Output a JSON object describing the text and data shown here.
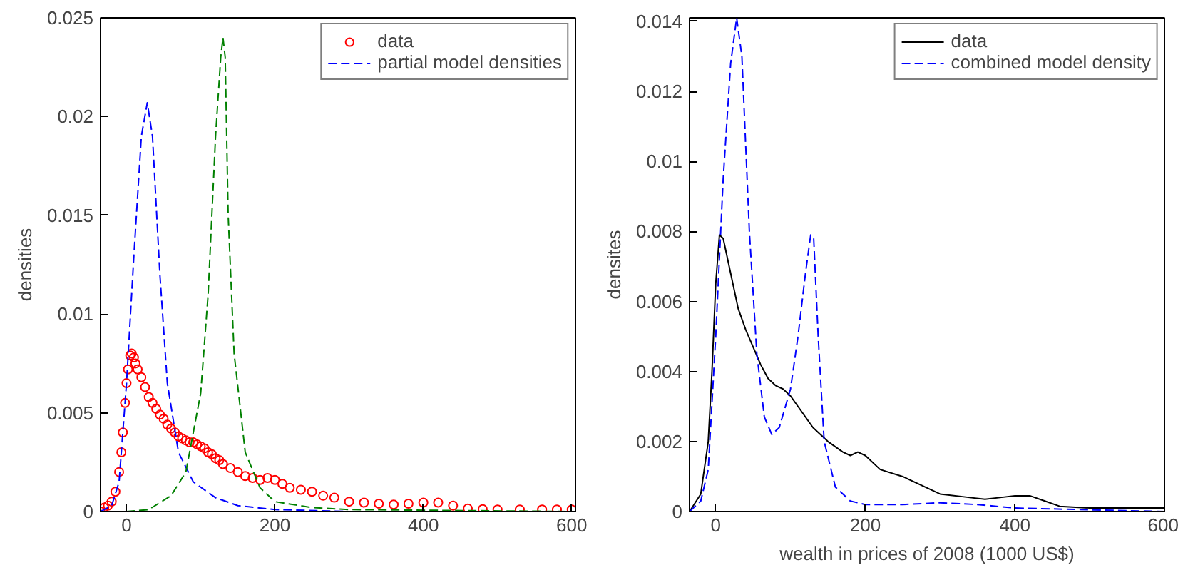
{
  "chart_data": [
    {
      "type": "line",
      "ylabel": "densities",
      "xlim": [
        -35,
        605
      ],
      "ylim": [
        0,
        0.025
      ],
      "xticks": [
        0,
        200,
        400,
        600
      ],
      "yticks": [
        0,
        0.005,
        0.01,
        0.015,
        0.02,
        0.025
      ],
      "grid": false,
      "legend": "top right",
      "series": [
        {
          "name": "data",
          "type": "scatter",
          "marker": "circle",
          "color": "#ff0000",
          "x": [
            -35,
            -30,
            -25,
            -20,
            -15,
            -10,
            -7,
            -5,
            -2,
            0,
            2,
            5,
            7,
            10,
            12,
            15,
            20,
            25,
            30,
            35,
            40,
            45,
            50,
            55,
            60,
            65,
            70,
            75,
            80,
            85,
            90,
            95,
            100,
            105,
            110,
            115,
            120,
            125,
            130,
            140,
            150,
            160,
            170,
            180,
            190,
            200,
            210,
            220,
            235,
            250,
            265,
            280,
            300,
            320,
            340,
            360,
            380,
            400,
            420,
            440,
            460,
            480,
            500,
            530,
            560,
            580,
            600
          ],
          "values": [
            0,
            0.0002,
            0.0003,
            0.0005,
            0.001,
            0.002,
            0.003,
            0.004,
            0.0055,
            0.0065,
            0.0072,
            0.0079,
            0.008,
            0.0078,
            0.0075,
            0.0072,
            0.0068,
            0.0063,
            0.0058,
            0.0055,
            0.0052,
            0.0049,
            0.0047,
            0.0044,
            0.0042,
            0.004,
            0.0038,
            0.0037,
            0.0036,
            0.0035,
            0.0035,
            0.0034,
            0.0033,
            0.0032,
            0.003,
            0.0029,
            0.0027,
            0.0026,
            0.0024,
            0.0022,
            0.002,
            0.0018,
            0.0017,
            0.0016,
            0.0017,
            0.0016,
            0.0014,
            0.0012,
            0.0011,
            0.001,
            0.0008,
            0.0007,
            0.0005,
            0.00045,
            0.0004,
            0.00035,
            0.0004,
            0.00045,
            0.00045,
            0.0003,
            0.00015,
            0.00012,
            0.0001,
            0.0001,
            0.0001,
            0.0001,
            0.0001
          ]
        },
        {
          "name": "partial model densities",
          "line_style": "dashed",
          "marker": "none",
          "color": "#0000ff",
          "x": [
            -35,
            -20,
            -10,
            0,
            10,
            20,
            28,
            35,
            45,
            55,
            70,
            90,
            120,
            150,
            200,
            300,
            600
          ],
          "values": [
            0,
            0.0003,
            0.0015,
            0.0065,
            0.013,
            0.019,
            0.0207,
            0.019,
            0.012,
            0.0065,
            0.003,
            0.0015,
            0.0007,
            0.0003,
            0.0001,
            0,
            0
          ]
        },
        {
          "line_style": "dashed",
          "marker": "none",
          "color": "#008000",
          "x": [
            -35,
            0,
            30,
            60,
            80,
            100,
            110,
            120,
            127,
            130,
            133,
            137,
            145,
            160,
            180,
            200,
            250,
            300,
            600
          ],
          "values": [
            0,
            0,
            0.0001,
            0.0008,
            0.002,
            0.006,
            0.011,
            0.019,
            0.023,
            0.024,
            0.023,
            0.015,
            0.008,
            0.003,
            0.0012,
            0.0005,
            0.0002,
            0.0001,
            0
          ]
        }
      ]
    },
    {
      "type": "line",
      "xlabel": "wealth in prices of 2008 (1000 US$)",
      "ylabel": "densites",
      "xlim": [
        -35,
        600
      ],
      "ylim": [
        0,
        0.0141
      ],
      "xticks": [
        0,
        200,
        400,
        600
      ],
      "yticks": [
        0,
        0.002,
        0.004,
        0.006,
        0.008,
        0.01,
        0.012,
        0.014
      ],
      "grid": false,
      "legend": "top right",
      "series": [
        {
          "name": "data",
          "line_style": "solid",
          "marker": "none",
          "color": "#000000",
          "x": [
            -35,
            -20,
            -10,
            -5,
            0,
            5,
            10,
            20,
            30,
            40,
            50,
            60,
            70,
            80,
            90,
            100,
            110,
            120,
            130,
            150,
            170,
            180,
            190,
            200,
            220,
            250,
            280,
            300,
            340,
            360,
            380,
            400,
            420,
            440,
            460,
            500,
            530,
            560,
            580,
            600
          ],
          "values": [
            0,
            0.0005,
            0.002,
            0.004,
            0.0065,
            0.0079,
            0.0078,
            0.0068,
            0.0058,
            0.0052,
            0.0047,
            0.0042,
            0.0038,
            0.0036,
            0.0035,
            0.0033,
            0.003,
            0.0027,
            0.0024,
            0.002,
            0.0017,
            0.0016,
            0.0017,
            0.0016,
            0.0012,
            0.001,
            0.0007,
            0.0005,
            0.0004,
            0.00035,
            0.0004,
            0.00045,
            0.00045,
            0.0003,
            0.00015,
            0.0001,
            0.0001,
            0.0001,
            0.0001,
            0.0001
          ]
        },
        {
          "name": "combined model density",
          "line_style": "dashed",
          "marker": "none",
          "color": "#0000ff",
          "x": [
            -35,
            -20,
            -10,
            0,
            10,
            20,
            28,
            35,
            45,
            55,
            65,
            75,
            85,
            100,
            110,
            120,
            127,
            131,
            137,
            145,
            160,
            180,
            200,
            250,
            300,
            350,
            400,
            600
          ],
          "values": [
            0,
            0.0003,
            0.0012,
            0.005,
            0.0095,
            0.0128,
            0.0141,
            0.013,
            0.008,
            0.0045,
            0.0027,
            0.0022,
            0.0024,
            0.0035,
            0.005,
            0.0068,
            0.0079,
            0.0078,
            0.005,
            0.002,
            0.0007,
            0.0003,
            0.0002,
            0.0002,
            0.00025,
            0.0002,
            0.0001,
            0
          ]
        }
      ]
    }
  ]
}
